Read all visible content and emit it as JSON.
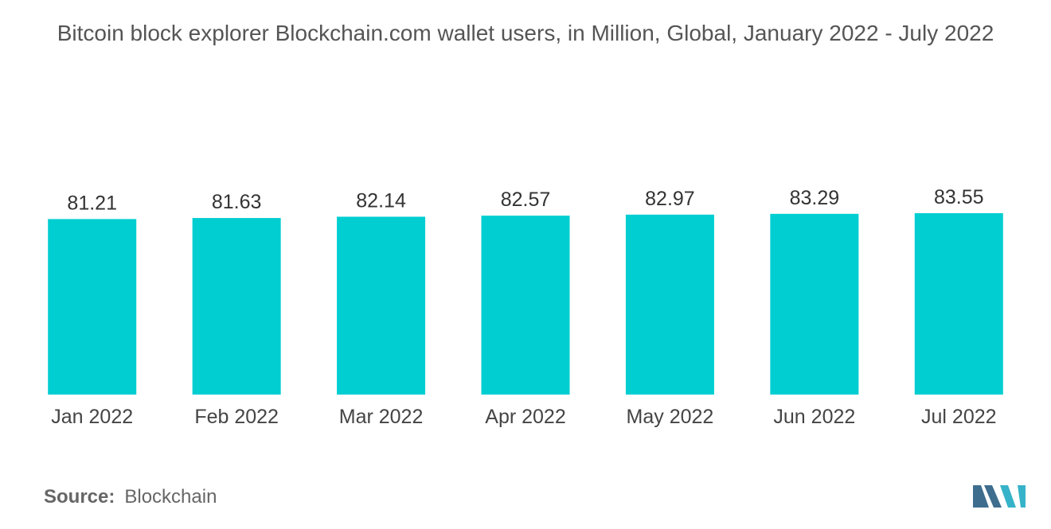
{
  "chart_data": {
    "type": "bar",
    "title": "Bitcoin block explorer Blockchain.com wallet users, in Million, Global, January 2022 - July 2022",
    "categories": [
      "Jan 2022",
      "Feb 2022",
      "Mar 2022",
      "Apr 2022",
      "May 2022",
      "Jun 2022",
      "Jul 2022"
    ],
    "values": [
      81.21,
      81.63,
      82.14,
      82.57,
      82.97,
      83.29,
      83.55
    ],
    "xlabel": "",
    "ylabel": "",
    "ylim": [
      0,
      90
    ],
    "grid": false,
    "legend": "none",
    "bar_color": "#00CED1"
  },
  "source": {
    "label": "Source:",
    "value": "Blockchain"
  },
  "colors": {
    "logo_dark": "#3E6D8E",
    "logo_teal": "#36B3C9"
  }
}
